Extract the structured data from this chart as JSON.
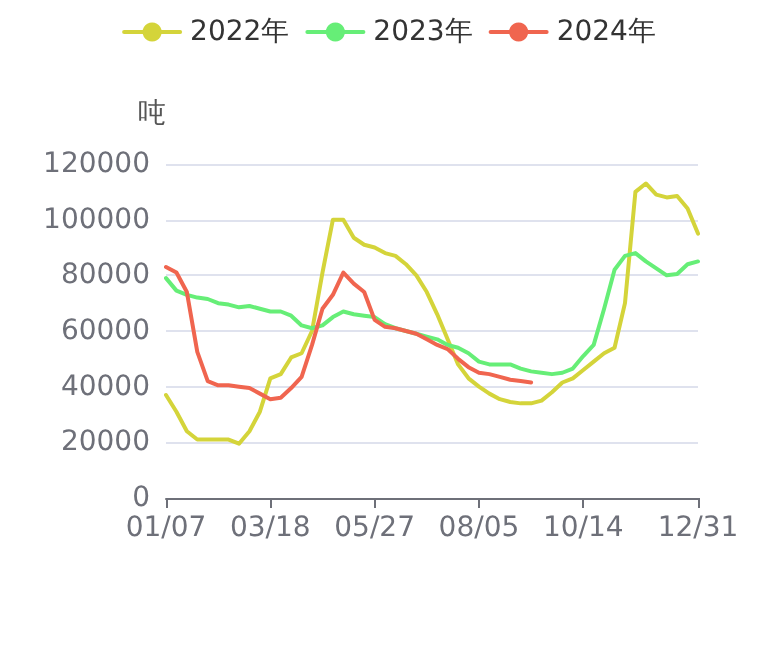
{
  "chart_data": {
    "type": "line",
    "ylabel": "吨",
    "legend": "top",
    "grid": "y",
    "marker": "none",
    "line_style": "solid",
    "categories": [
      "01/07",
      null,
      null,
      null,
      null,
      null,
      null,
      null,
      null,
      null,
      "03/18",
      null,
      null,
      null,
      null,
      null,
      null,
      null,
      null,
      null,
      "05/27",
      null,
      null,
      null,
      null,
      null,
      null,
      null,
      null,
      null,
      "08/05",
      null,
      null,
      null,
      null,
      null,
      null,
      null,
      null,
      null,
      "10/14",
      null,
      null,
      null,
      null,
      null,
      null,
      null,
      null,
      null,
      null,
      "12/31"
    ],
    "ylim": [
      0,
      120000
    ],
    "yticks": [
      0,
      20000,
      40000,
      60000,
      80000,
      100000,
      120000
    ],
    "series": [
      {
        "name": "2022年",
        "color": "#d4d43a",
        "values": [
          37000,
          31000,
          24000,
          21000,
          21000,
          21000,
          21000,
          19500,
          24000,
          31000,
          43000,
          44500,
          50500,
          52000,
          60000,
          81000,
          100000,
          100000,
          93500,
          91000,
          90000,
          88000,
          87000,
          84000,
          80000,
          74000,
          66000,
          57000,
          48000,
          43000,
          40000,
          37500,
          35500,
          34500,
          34000,
          34000,
          35000,
          38000,
          41500,
          43000,
          46000,
          49000,
          52000,
          54000,
          70000,
          110000,
          113000,
          109000,
          108000,
          108500,
          104000,
          95000
        ]
      },
      {
        "name": "2023年",
        "color": "#66ee77",
        "values": [
          79000,
          74500,
          73000,
          72000,
          71500,
          70000,
          69500,
          68500,
          69000,
          68000,
          67000,
          67000,
          65500,
          62000,
          61000,
          62000,
          65000,
          67000,
          66000,
          65500,
          65000,
          62500,
          61000,
          60000,
          59000,
          58000,
          57000,
          55000,
          54000,
          52000,
          49000,
          48000,
          48000,
          48000,
          46500,
          45500,
          45000,
          44500,
          45000,
          46500,
          51000,
          55000,
          68000,
          82000,
          87000,
          88000,
          85000,
          82500,
          80000,
          80500,
          84000,
          85000
        ]
      },
      {
        "name": "2024年",
        "color": "#f0654f",
        "values": [
          83000,
          81000,
          74000,
          52500,
          42000,
          40500,
          40500,
          40000,
          39500,
          37500,
          35500,
          36000,
          39500,
          43500,
          55000,
          68000,
          73000,
          81000,
          77000,
          74000,
          64000,
          61500,
          61000,
          60000,
          59000,
          57000,
          55000,
          53500,
          50000,
          47000,
          45000,
          44500,
          43500,
          42500,
          42000,
          41500,
          null,
          null,
          null,
          null,
          null,
          null,
          null,
          null,
          null,
          null,
          null,
          null,
          null,
          null,
          null,
          null
        ]
      }
    ]
  }
}
